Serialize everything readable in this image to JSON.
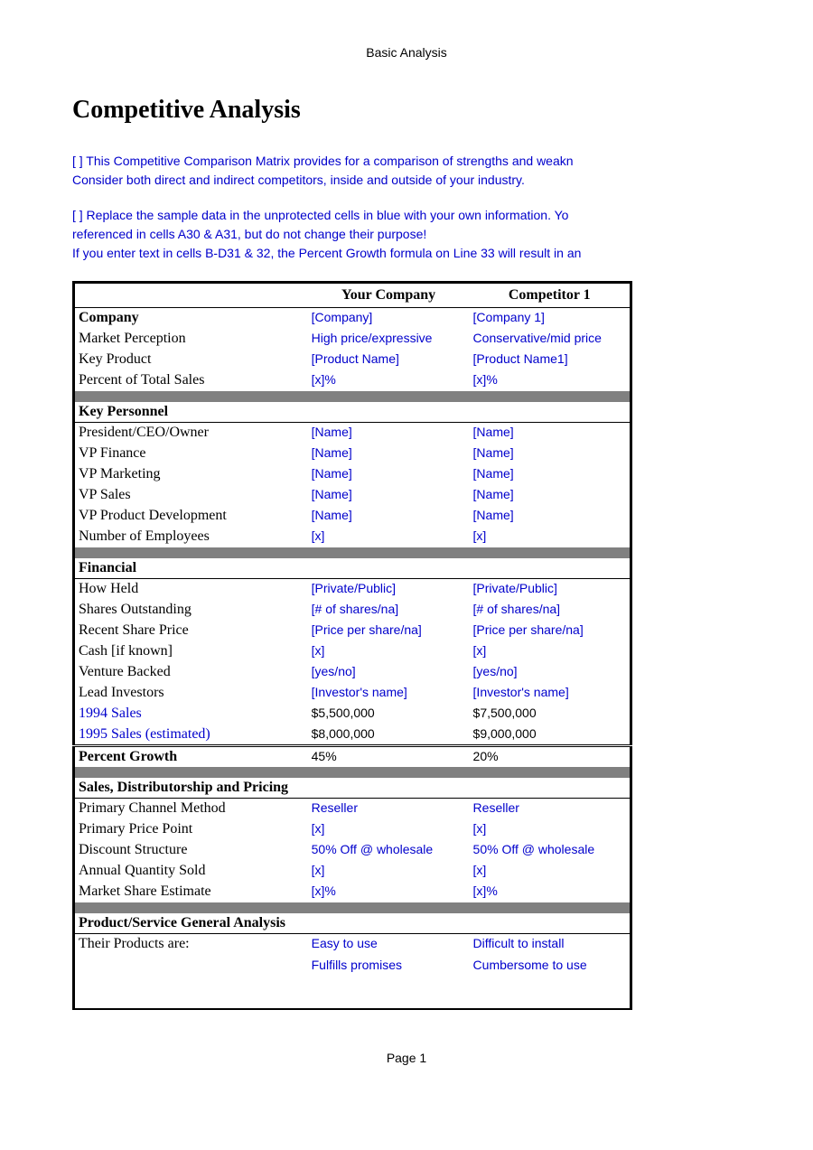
{
  "header": "Basic Analysis",
  "title": "Competitive Analysis",
  "instructions": [
    "[ ]  This Competitive Comparison Matrix provides for a comparison of strengths and weakn\nConsider both direct and indirect competitors, inside and outside of your industry.",
    "[ ]  Replace the sample data in the unprotected cells in blue with your own information.  Yo\nreferenced in cells A30 & A31, but do not change their purpose!\nIf you enter text in cells B-D31 & 32, the Percent Growth formula on Line 33 will result in an"
  ],
  "columns": {
    "a": "Your Company",
    "b": "Competitor 1"
  },
  "rows": {
    "company": {
      "label": "Company",
      "a": "[Company]",
      "b": "[Company 1]"
    },
    "perception": {
      "label": "Market Perception",
      "a": "High price/expressive",
      "b": "Conservative/mid price"
    },
    "keyproduct": {
      "label": "Key Product",
      "a": "[Product Name]",
      "b": "[Product Name1]"
    },
    "pctsales": {
      "label": "Percent of Total Sales",
      "a": "[x]%",
      "b": "[x]%"
    },
    "president": {
      "label": "President/CEO/Owner",
      "a": "[Name]",
      "b": "[Name]"
    },
    "vpfin": {
      "label": "VP Finance",
      "a": "[Name]",
      "b": "[Name]"
    },
    "vpmkt": {
      "label": "VP Marketing",
      "a": "[Name]",
      "b": "[Name]"
    },
    "vpsales": {
      "label": "VP Sales",
      "a": "[Name]",
      "b": "[Name]"
    },
    "vppd": {
      "label": "VP Product Development",
      "a": "[Name]",
      "b": "[Name]"
    },
    "emp": {
      "label": "Number of Employees",
      "a": "[x]",
      "b": "[x]"
    },
    "howheld": {
      "label": "How Held",
      "a": "[Private/Public]",
      "b": "[Private/Public]"
    },
    "shares": {
      "label": "Shares Outstanding",
      "a": "[# of shares/na]",
      "b": "[# of shares/na]"
    },
    "price": {
      "label": "Recent Share Price",
      "a": "[Price per share/na]",
      "b": "[Price per share/na]"
    },
    "cash": {
      "label": "Cash [if known]",
      "a": "[x]",
      "b": "[x]"
    },
    "venture": {
      "label": "Venture Backed",
      "a": "[yes/no]",
      "b": "[yes/no]"
    },
    "lead": {
      "label": "Lead Investors",
      "a": "[Investor's name]",
      "b": "[Investor's name]"
    },
    "s94": {
      "label": "1994 Sales",
      "a": "$5,500,000",
      "b": "$7,500,000"
    },
    "s95": {
      "label": "1995 Sales (estimated)",
      "a": "$8,000,000",
      "b": "$9,000,000"
    },
    "growth": {
      "label": "Percent Growth",
      "a": "45%",
      "b": "20%"
    },
    "channel": {
      "label": "Primary Channel Method",
      "a": "Reseller",
      "b": "Reseller"
    },
    "ppp": {
      "label": "Primary Price Point",
      "a": "[x]",
      "b": "[x]"
    },
    "discount": {
      "label": "Discount Structure",
      "a": "50% Off @ wholesale",
      "b": "50% Off @ wholesale"
    },
    "qty": {
      "label": "Annual Quantity Sold",
      "a": "[x]",
      "b": "[x]"
    },
    "mshare": {
      "label": "Market Share Estimate",
      "a": "[x]%",
      "b": "[x]%"
    },
    "prod1": {
      "label": "Their Products are:",
      "a": "Easy to use",
      "b": "Difficult to install"
    },
    "prod2": {
      "label": "",
      "a": "Fulfills promises",
      "b": "Cumbersome to use"
    }
  },
  "sections": {
    "keypersonnel": "Key Personnel",
    "financial": "Financial",
    "sdp": "Sales, Distributorship and Pricing",
    "psga": "Product/Service General Analysis"
  },
  "footer": "Page 1"
}
